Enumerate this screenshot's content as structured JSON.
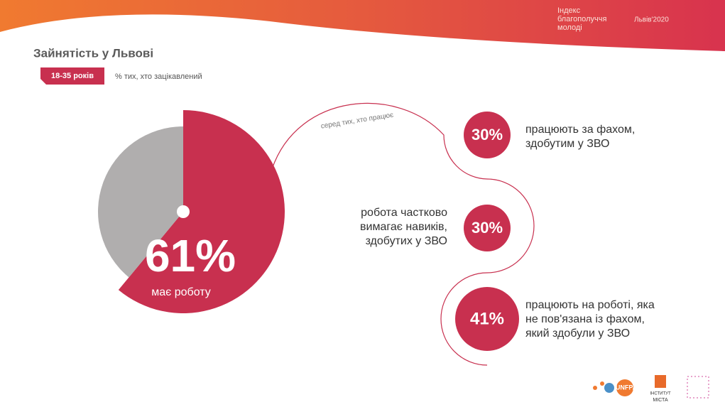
{
  "header": {
    "brand": [
      "Індекс",
      "благополуччя",
      "молоді"
    ],
    "edition": "Львів'2020"
  },
  "title": "Зайнятість у Львові",
  "badge": "18-35 років",
  "note": "% тих, хто зацікавлений",
  "chart_data": {
    "type": "pie",
    "categories": [
      "має роботу",
      null
    ],
    "values": [
      61,
      39
    ],
    "value_labels": [
      "61%",
      null
    ],
    "colors": [
      "#c8304f",
      "#b0aeae"
    ]
  },
  "connector_label": "серед тих, хто працює",
  "items": [
    {
      "value": "30%",
      "lines": [
        "працюють за фахом,",
        "здобутим у ЗВО"
      ]
    },
    {
      "value": "30%",
      "lines": [
        "робота частково",
        "вимагає навиків,",
        "здобутих у ЗВО"
      ]
    },
    {
      "value": "41%",
      "lines": [
        "працюють на роботі, яка",
        "не пов'язана із фахом,",
        "який здобули у ЗВО"
      ]
    }
  ],
  "logos": [
    "UNFPA",
    "ІНСТИТУТ",
    "МІСТА"
  ]
}
